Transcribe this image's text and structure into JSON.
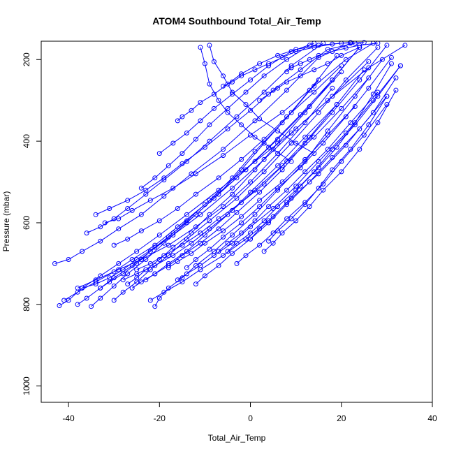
{
  "chart_data": {
    "type": "line",
    "title": "ATOM4 Southbound Total_Air_Temp",
    "xlabel": "Total_Air_Temp",
    "ylabel": "Pressure (mbar)",
    "xlim": [
      -46,
      40
    ],
    "ylim": [
      1040,
      155
    ],
    "y_reversed": true,
    "x_ticks": [
      -40,
      -20,
      0,
      20,
      40
    ],
    "y_ticks": [
      200,
      400,
      600,
      800,
      1000
    ],
    "marker": "open-circle",
    "color": "#0000ff",
    "grid": false,
    "series": [
      {
        "x": [
          -42,
          -40,
          -37,
          -33,
          -29,
          -25,
          -20,
          -14,
          -7,
          1,
          9,
          17,
          26,
          34
        ],
        "y": [
          803,
          790,
          760,
          730,
          700,
          670,
          630,
          580,
          520,
          450,
          380,
          300,
          220,
          165
        ]
      },
      {
        "x": [
          -38,
          -36,
          -33,
          -30,
          -26,
          -22,
          -17,
          -11,
          -4,
          3,
          10,
          18,
          26
        ],
        "y": [
          800,
          785,
          760,
          735,
          705,
          670,
          630,
          580,
          515,
          445,
          370,
          290,
          205
        ]
      },
      {
        "x": [
          -35,
          -33,
          -30,
          -27,
          -23,
          -19,
          -14,
          -8,
          -1,
          6,
          13,
          20
        ],
        "y": [
          805,
          785,
          755,
          725,
          690,
          650,
          600,
          540,
          470,
          395,
          315,
          230
        ]
      },
      {
        "x": [
          -41,
          -38,
          -34,
          -30,
          -26,
          -21,
          -16,
          -10,
          -3,
          4,
          11,
          18,
          24
        ],
        "y": [
          790,
          770,
          745,
          720,
          690,
          655,
          610,
          555,
          490,
          415,
          335,
          250,
          170
        ]
      },
      {
        "x": [
          -30,
          -28,
          -25,
          -22,
          -18,
          -14,
          -9,
          -3,
          3,
          9,
          15,
          21,
          28
        ],
        "y": [
          790,
          770,
          745,
          715,
          680,
          640,
          595,
          540,
          475,
          405,
          330,
          250,
          170
        ]
      },
      {
        "x": [
          -21,
          -20,
          -18,
          -15,
          -12,
          -8,
          -4,
          1,
          6,
          12,
          17,
          23,
          29
        ],
        "y": [
          805,
          785,
          760,
          735,
          705,
          670,
          630,
          580,
          520,
          450,
          375,
          290,
          200
        ]
      },
      {
        "x": [
          -38,
          -34,
          -29,
          -24,
          -18,
          -12,
          -6,
          0,
          6,
          12,
          18
        ],
        "y": [
          760,
          740,
          715,
          690,
          655,
          610,
          560,
          500,
          430,
          355,
          270
        ]
      },
      {
        "x": [
          -43,
          -40,
          -37,
          -33,
          -29,
          -24,
          -19,
          -13,
          -6,
          1,
          8,
          15,
          22
        ],
        "y": [
          700,
          690,
          670,
          645,
          615,
          580,
          535,
          480,
          420,
          350,
          275,
          195,
          160
        ]
      },
      {
        "x": [
          -32,
          -29,
          -26,
          -22,
          -17,
          -12,
          -6,
          0,
          7,
          14,
          21,
          27
        ],
        "y": [
          600,
          590,
          570,
          545,
          515,
          480,
          435,
          385,
          330,
          265,
          200,
          160
        ]
      },
      {
        "x": [
          -36,
          -33,
          -30,
          -27,
          -23,
          -19,
          -14,
          -9,
          -3,
          3,
          9,
          16
        ],
        "y": [
          625,
          610,
          590,
          565,
          530,
          495,
          450,
          400,
          340,
          280,
          215,
          160
        ]
      },
      {
        "x": [
          -26,
          -24,
          -21,
          -18,
          -14,
          -10,
          -5,
          0,
          6,
          12,
          19,
          25
        ],
        "y": [
          760,
          745,
          725,
          700,
          670,
          630,
          580,
          525,
          460,
          390,
          310,
          225
        ]
      },
      {
        "x": [
          -22,
          -19,
          -15,
          -11,
          -6,
          -1,
          4,
          9,
          15,
          21,
          27,
          32
        ],
        "y": [
          790,
          770,
          745,
          715,
          680,
          640,
          595,
          540,
          480,
          410,
          330,
          245
        ]
      },
      {
        "x": [
          -28,
          -25,
          -21,
          -17,
          -13,
          -9,
          -4,
          1,
          7,
          13,
          19
        ],
        "y": [
          740,
          725,
          705,
          680,
          650,
          615,
          570,
          520,
          460,
          390,
          310
        ]
      },
      {
        "x": [
          -16,
          -14,
          -11,
          -8,
          -4,
          0,
          5,
          10,
          15,
          21,
          27,
          33
        ],
        "y": [
          740,
          725,
          705,
          680,
          650,
          610,
          565,
          510,
          450,
          380,
          300,
          215
        ]
      },
      {
        "x": [
          -12,
          -10,
          -7,
          -4,
          0,
          4,
          8,
          13,
          18,
          24,
          30
        ],
        "y": [
          750,
          730,
          705,
          675,
          640,
          600,
          555,
          500,
          440,
          370,
          290
        ]
      },
      {
        "x": [
          -7,
          -5,
          -2,
          1,
          4,
          8,
          12,
          17,
          22,
          28
        ],
        "y": [
          670,
          650,
          625,
          595,
          560,
          520,
          475,
          420,
          355,
          280
        ]
      },
      {
        "x": [
          -3,
          -1,
          2,
          5,
          8,
          12,
          16,
          20,
          25,
          30
        ],
        "y": [
          700,
          680,
          655,
          625,
          590,
          550,
          505,
          450,
          385,
          310
        ]
      },
      {
        "x": [
          3,
          5,
          7,
          10,
          13,
          16,
          20,
          24,
          28,
          32
        ],
        "y": [
          670,
          650,
          625,
          595,
          560,
          520,
          475,
          420,
          355,
          275
        ]
      },
      {
        "x": [
          -11,
          -10,
          -9,
          -7,
          -5,
          -2,
          1,
          5,
          9
        ],
        "y": [
          170,
          210,
          260,
          300,
          330,
          360,
          390,
          420,
          450
        ]
      },
      {
        "x": [
          -9,
          -8,
          -6,
          -4,
          -1,
          2,
          6,
          10,
          14
        ],
        "y": [
          165,
          205,
          240,
          280,
          310,
          345,
          375,
          405,
          430
        ]
      },
      {
        "x": [
          -24,
          -21,
          -18,
          -15,
          -12,
          -9,
          -5,
          -1,
          3,
          8,
          13
        ],
        "y": [
          515,
          490,
          460,
          430,
          395,
          360,
          320,
          280,
          240,
          200,
          165
        ]
      },
      {
        "x": [
          -20,
          -17,
          -14,
          -11,
          -8,
          -4,
          0,
          4,
          9,
          14
        ],
        "y": [
          430,
          405,
          380,
          350,
          320,
          285,
          250,
          215,
          180,
          160
        ]
      },
      {
        "x": [
          -34,
          -31,
          -27,
          -23,
          -19,
          -15,
          -10,
          -5,
          0,
          5,
          11,
          17,
          23
        ],
        "y": [
          580,
          565,
          545,
          520,
          490,
          455,
          415,
          370,
          325,
          275,
          225,
          175,
          160
        ]
      },
      {
        "x": [
          -30,
          -27,
          -24,
          -20,
          -16,
          -12,
          -7,
          -2,
          3,
          8,
          14,
          20
        ],
        "y": [
          655,
          640,
          620,
          595,
          565,
          530,
          490,
          445,
          395,
          340,
          280,
          215
        ]
      },
      {
        "x": [
          -25,
          -22,
          -19,
          -15,
          -11,
          -7,
          -2,
          3,
          8,
          14,
          20,
          26
        ],
        "y": [
          715,
          700,
          680,
          655,
          625,
          590,
          550,
          505,
          450,
          390,
          320,
          245
        ]
      },
      {
        "x": [
          -18,
          -16,
          -13,
          -10,
          -6,
          -2,
          2,
          7,
          12,
          17,
          23
        ],
        "y": [
          710,
          695,
          675,
          650,
          620,
          585,
          545,
          500,
          445,
          385,
          315
        ]
      },
      {
        "x": [
          -14,
          -12,
          -9,
          -6,
          -2,
          2,
          6,
          11,
          16,
          21,
          26,
          31
        ],
        "y": [
          710,
          690,
          665,
          635,
          600,
          560,
          515,
          465,
          405,
          340,
          270,
          195
        ]
      },
      {
        "x": [
          -5,
          -3,
          0,
          3,
          6,
          10,
          14,
          18,
          23,
          28,
          33
        ],
        "y": [
          670,
          650,
          625,
          595,
          560,
          520,
          475,
          420,
          360,
          290,
          215
        ]
      },
      {
        "x": [
          0,
          2,
          5,
          8,
          11,
          15,
          19,
          23,
          27,
          31
        ],
        "y": [
          640,
          615,
          585,
          550,
          510,
          465,
          415,
          355,
          285,
          210
        ]
      },
      {
        "x": [
          4,
          6,
          9,
          12,
          15,
          18,
          22,
          26,
          30
        ],
        "y": [
          645,
          620,
          590,
          555,
          515,
          470,
          420,
          360,
          290
        ]
      },
      {
        "x": [
          -37,
          -34,
          -31,
          -28,
          -25,
          -21,
          -17,
          -12,
          -7,
          -2,
          3,
          9,
          15
        ],
        "y": [
          760,
          750,
          735,
          715,
          690,
          660,
          625,
          580,
          530,
          470,
          405,
          330,
          250
        ]
      },
      {
        "x": [
          -33,
          -31,
          -28,
          -25,
          -22,
          -18,
          -14,
          -9,
          -4,
          1,
          7,
          13,
          19
        ],
        "y": [
          760,
          745,
          725,
          700,
          670,
          635,
          595,
          545,
          490,
          425,
          355,
          275,
          190
        ]
      },
      {
        "x": [
          -27,
          -25,
          -23,
          -20,
          -17,
          -13,
          -9,
          -4,
          1,
          6,
          12,
          18,
          24
        ],
        "y": [
          750,
          735,
          715,
          690,
          660,
          625,
          580,
          530,
          470,
          405,
          330,
          250,
          170
        ]
      },
      {
        "x": [
          -23,
          -21,
          -18,
          -15,
          -11,
          -7,
          -3,
          2,
          7,
          12,
          18,
          24,
          30
        ],
        "y": [
          740,
          725,
          705,
          680,
          650,
          615,
          575,
          525,
          470,
          405,
          330,
          250,
          165
        ]
      },
      {
        "x": [
          -16,
          -15,
          -13,
          -11,
          -8,
          -5,
          -2,
          2,
          6,
          10,
          15,
          20,
          25
        ],
        "y": [
          350,
          340,
          325,
          305,
          285,
          260,
          235,
          210,
          190,
          175,
          165,
          160,
          158
        ]
      },
      {
        "x": [
          -6,
          -4,
          -2,
          1,
          4,
          7,
          10,
          14,
          18,
          22
        ],
        "y": [
          265,
          255,
          240,
          225,
          210,
          195,
          180,
          170,
          162,
          158
        ]
      },
      {
        "x": [
          2,
          4,
          6,
          8,
          11,
          14,
          17,
          20,
          24
        ],
        "y": [
          300,
          285,
          270,
          255,
          240,
          225,
          210,
          190,
          170
        ]
      },
      {
        "x": [
          8,
          9,
          11,
          13,
          15,
          18,
          21,
          24,
          28
        ],
        "y": [
          230,
          220,
          210,
          200,
          190,
          180,
          172,
          165,
          160
        ]
      }
    ]
  }
}
